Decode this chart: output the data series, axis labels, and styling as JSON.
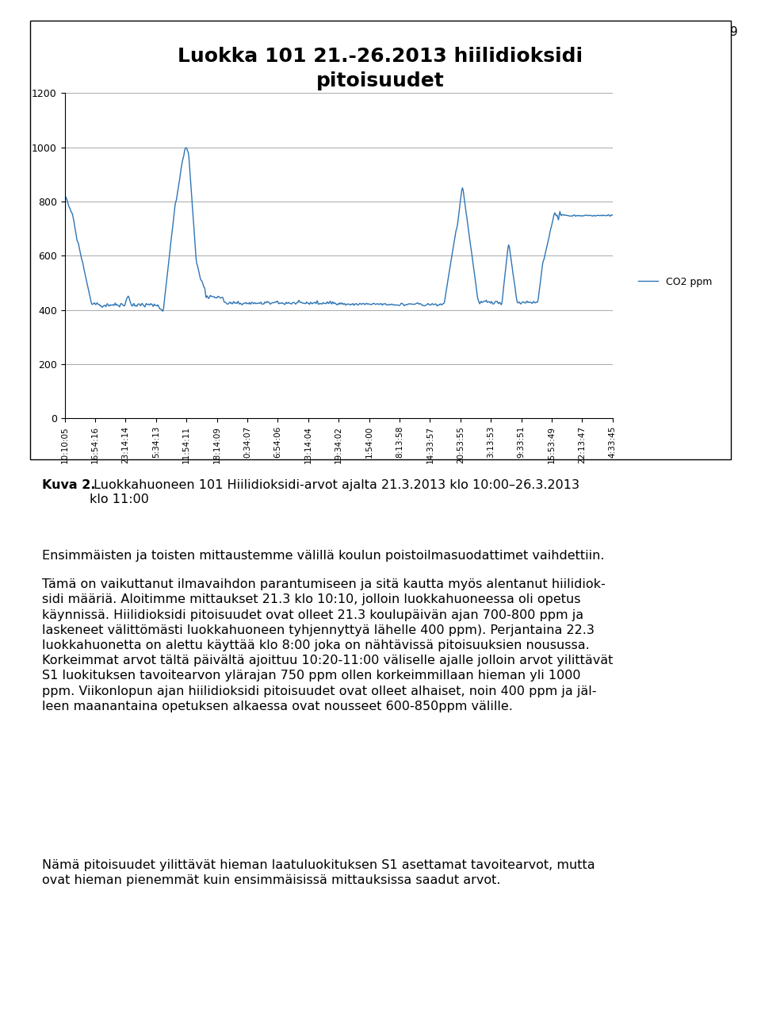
{
  "title": "Luokka 101 21.-26.2013 hiilidioksidi\npitoisuudet",
  "legend_label": "CO2 ppm",
  "line_color": "#2E75B6",
  "background_color": "#FFFFFF",
  "ylim": [
    0,
    1200
  ],
  "yticks": [
    0,
    200,
    400,
    600,
    800,
    1000,
    1200
  ],
  "x_tick_labels": [
    "10:10:05",
    "16:54:16",
    "23:14:14",
    "5:34:13",
    "11:54:11",
    "18:14:09",
    "0:34:07",
    "6:54:06",
    "13:14:04",
    "19:34:02",
    "1:54:00",
    "8:13:58",
    "14:33:57",
    "20:53:55",
    "3:13:53",
    "9:33:51",
    "15:53:49",
    "22:13:47",
    "4:33:45"
  ],
  "page_number": "9",
  "title_fontsize": 18,
  "title_fontweight": "bold",
  "caption_bold": "Kuva 2.",
  "caption_normal": " Luokkahuoneen 101 Hiilidioksidi-arvot ajalta 21.3.2013 klo 10:00–26.3.2013\nklo 11:00",
  "para1": "Ensimmäisten ja toisten mittaustemme välillä koulun poistoilmasuodattimet vaihdettiin.",
  "para2": "Tämä on vaikuttanut ilmavaihdon parantumiseen ja sitä kautta myös alentanut hiilidiok-\nsidi määriä. Aloitimme mittaukset 21.3 klo 10:10, jolloin luokkahuoneessa oli opetus\nkäynnissä. Hiilidioksidi pitoisuudet ovat olleet 21.3 koulupäivän ajan 700-800 ppm ja\nlaskeneet välittömästi luokkahuoneen tyhjennyttyä lähelle 400 ppm). Perjantaina 22.3\nluokkahuonetta on alettu käyttää klo 8:00 joka on nähtävissä pitoisuuksien nousussa.\nKorkeimmat arvot tältä päivältä ajoittuu 10:20-11:00 väliselle ajalle jolloin arvot yilittävät\nS1 luokituksen tavoitearvon ylärajan 750 ppm ollen korkeimmillaan hieman yli 1000\nppm. Viikonlopun ajan hiilidioksidi pitoisuudet ovat olleet alhaiset, noin 400 ppm ja jäl-\nleen maanantaina opetuksen alkaessa ovat nousseet 600-850ppm välille.",
  "para3": "Nämä pitoisuudet yilittävät hieman laatuluokituksen S1 asettamat tavoitearvot, mutta\novat hieman pienemmät kuin ensimmäisissä mittauksissa saadut arvot."
}
